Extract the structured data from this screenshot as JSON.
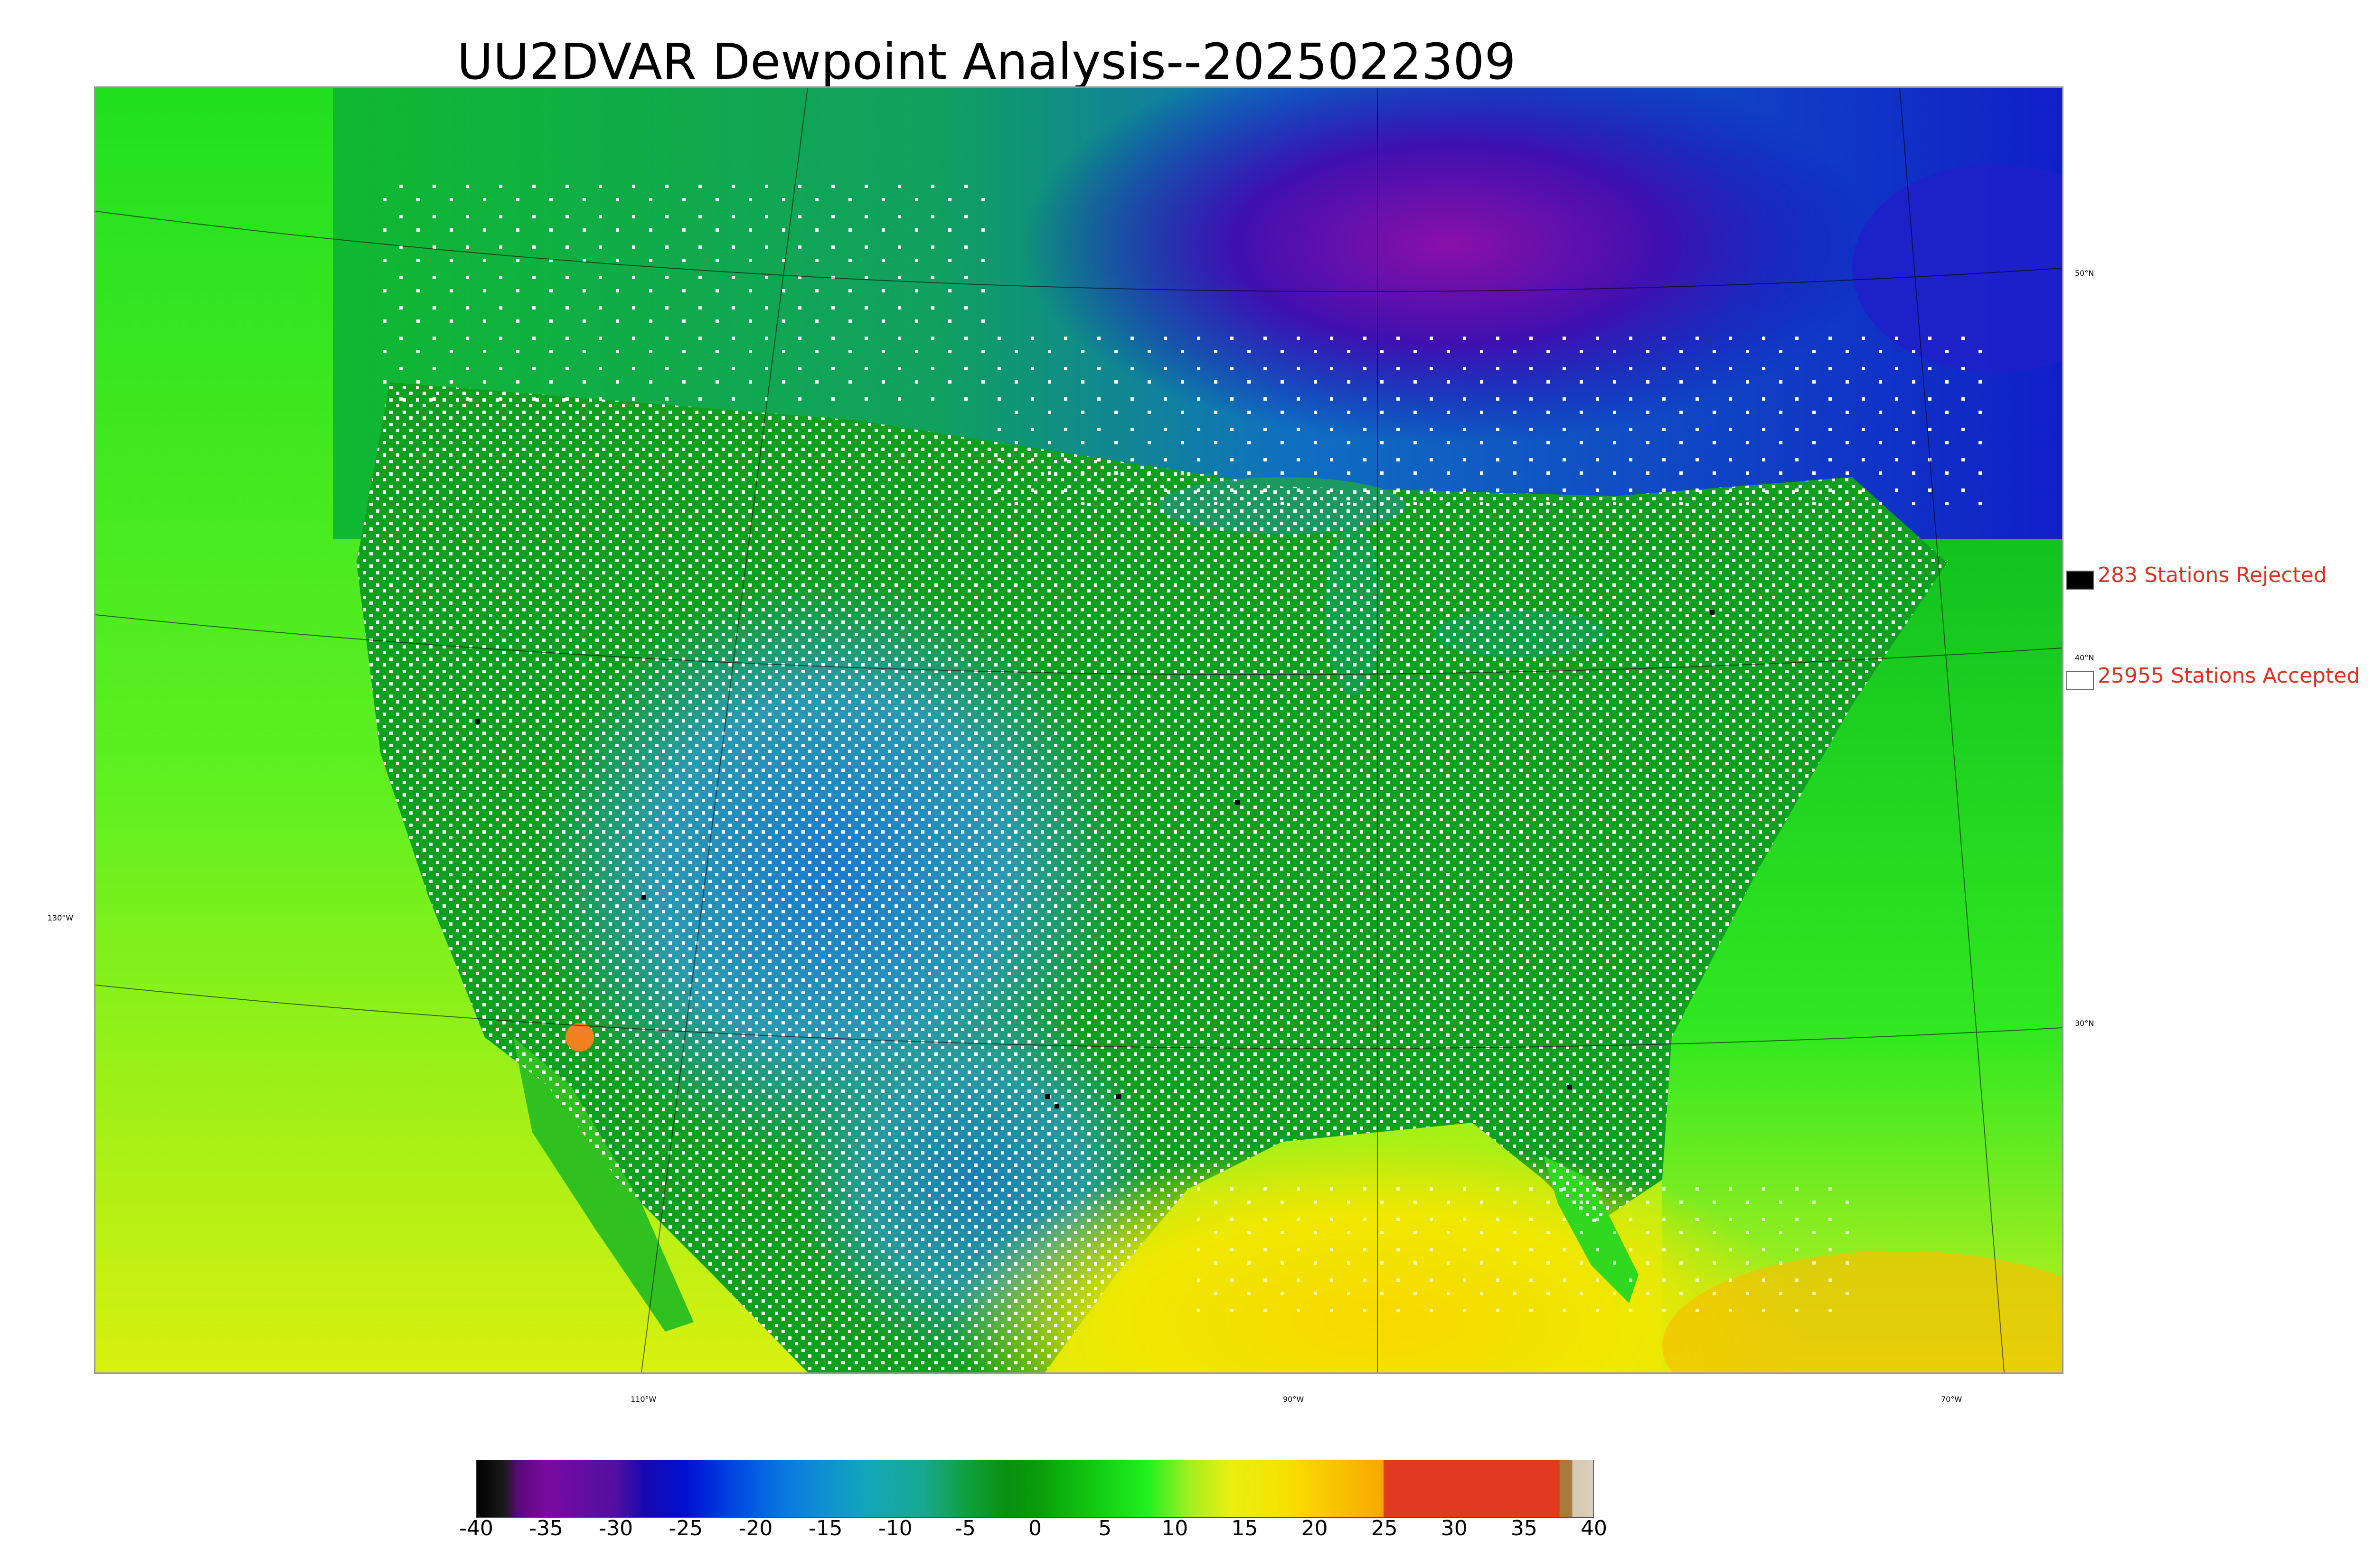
{
  "title": "UU2DVAR Dewpoint Analysis--2025022309",
  "map": {
    "latitude_labels": [
      "50°N",
      "40°N",
      "30°N",
      "130°W"
    ],
    "longitude_labels": [
      "110°W",
      "90°W",
      "70°W"
    ],
    "colors": {
      "ocean_gulf": "#f4e000",
      "pacific": "#3ef018",
      "atlantic": "#1fe028",
      "plains": "#1a9a1a",
      "west": "#2a9aa8",
      "canada_cold": "#1010c0",
      "hudson_bay": "#8a10a8",
      "station_accepted": "#ffffff",
      "station_rejected": "#000000"
    }
  },
  "legend": {
    "rejected": {
      "count": "283",
      "label": "283 Stations Rejected"
    },
    "accepted": {
      "count": "25955",
      "label": "25955 Stations Accepted"
    }
  },
  "colorbar": {
    "ticks": [
      "-40",
      "-35",
      "-30",
      "-25",
      "-20",
      "-15",
      "-10",
      "-5",
      "0",
      "5",
      "10",
      "15",
      "20",
      "25",
      "30",
      "35",
      "40"
    ],
    "min": -40,
    "max": 40,
    "stops": [
      [
        "-40",
        "#000000"
      ],
      [
        "-38",
        "#1a1a1a"
      ],
      [
        "-37",
        "#5a0a7a"
      ],
      [
        "-35",
        "#7a0aa0"
      ],
      [
        "-30",
        "#5010a0"
      ],
      [
        "-28",
        "#1808b0"
      ],
      [
        "-25",
        "#0010d0"
      ],
      [
        "-22",
        "#0040e0"
      ],
      [
        "-18",
        "#0a78e0"
      ],
      [
        "-15",
        "#1090d0"
      ],
      [
        "-12",
        "#10a8b8"
      ],
      [
        "-8",
        "#18a890"
      ],
      [
        "-5",
        "#10a040"
      ],
      [
        "-2",
        "#0a9010"
      ],
      [
        "0",
        "#0a9a0a"
      ],
      [
        "4",
        "#10c810"
      ],
      [
        "8",
        "#20f020"
      ],
      [
        "11",
        "#a0f020"
      ],
      [
        "14",
        "#e8f010"
      ],
      [
        "18",
        "#f8e000"
      ],
      [
        "22",
        "#f8c000"
      ],
      [
        "24.9",
        "#f8a800"
      ],
      [
        "25",
        "#e03a20"
      ],
      [
        "37.5",
        "#e03a20"
      ],
      [
        "37.6",
        "#a87a40"
      ],
      [
        "38.4",
        "#a87a40"
      ],
      [
        "38.5",
        "#d8c8b0"
      ],
      [
        "40",
        "#d8d0c0"
      ]
    ]
  }
}
